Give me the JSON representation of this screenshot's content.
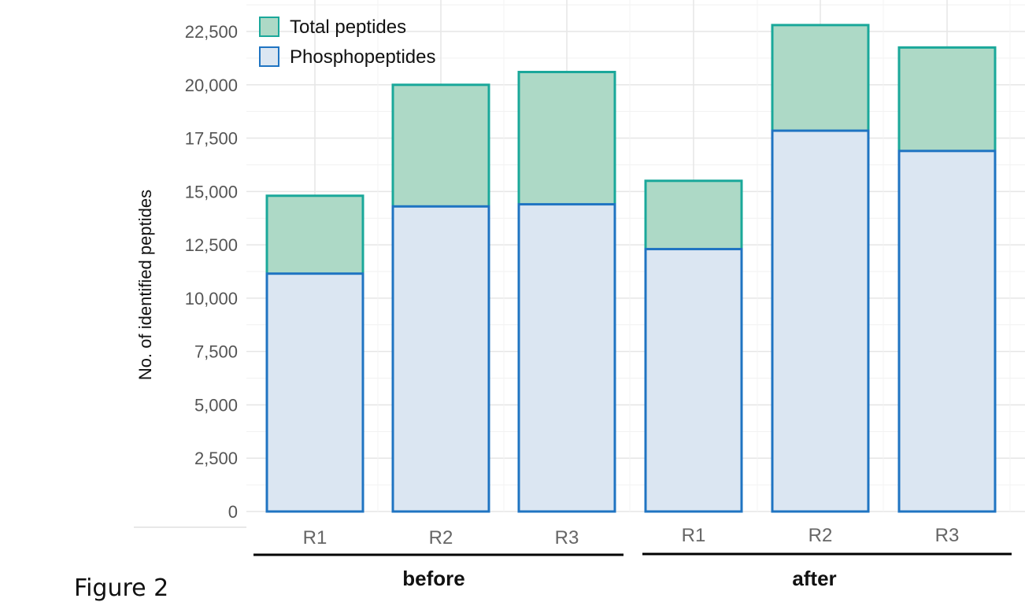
{
  "caption": "Figure 2",
  "colors": {
    "total_fill": "#add9c6",
    "total_stroke": "#1aa89a",
    "phospho_fill": "#dbe6f2",
    "phospho_stroke": "#1f74c2",
    "grid": "#e6e6e6",
    "group_rule": "#000000"
  },
  "chart_data": {
    "type": "bar",
    "layout": "overlapping bars (phosphopeptides drawn in front of total peptides)",
    "ylabel": "No. of identified peptides",
    "xlabel": "",
    "ylim": [
      0,
      23750
    ],
    "yticks": [
      0,
      2500,
      5000,
      7500,
      10000,
      12500,
      15000,
      17500,
      20000,
      22500
    ],
    "ytick_labels": [
      "0",
      "2,500",
      "5,000",
      "7,500",
      "10,000",
      "12,500",
      "15,000",
      "17,500",
      "20,000",
      "22,500"
    ],
    "categories": [
      "R1",
      "R2",
      "R3",
      "R1",
      "R2",
      "R3"
    ],
    "groups": [
      {
        "label": "before",
        "categories": [
          0,
          1,
          2
        ]
      },
      {
        "label": "after",
        "categories": [
          3,
          4,
          5
        ]
      }
    ],
    "series": [
      {
        "name": "Total peptides",
        "values": [
          14800,
          20000,
          20600,
          15500,
          22800,
          21750
        ]
      },
      {
        "name": "Phosphopeptides",
        "values": [
          11150,
          14300,
          14400,
          12300,
          17850,
          16900
        ]
      }
    ],
    "grid": true,
    "legend_position": "top-left"
  }
}
